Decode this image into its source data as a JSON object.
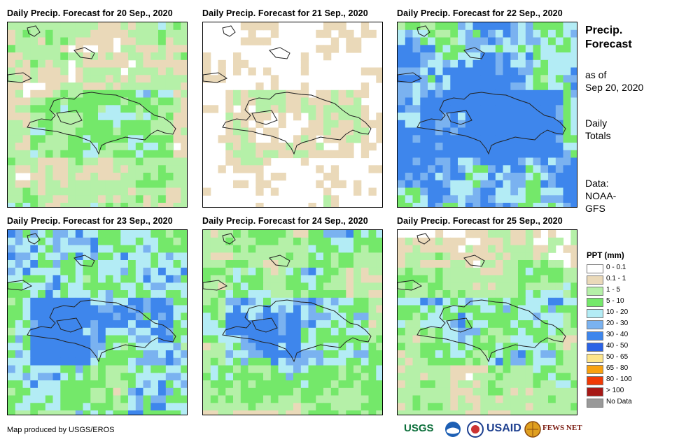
{
  "panels": [
    {
      "title": "Daily Precip. Forecast for 20 Sep., 2020",
      "seed": 11,
      "bias": 0.0
    },
    {
      "title": "Daily Precip. Forecast for 21 Sep., 2020",
      "seed": 23,
      "bias": -0.15
    },
    {
      "title": "Daily Precip. Forecast for 22 Sep., 2020",
      "seed": 37,
      "bias": 0.25
    },
    {
      "title": "Daily Precip. Forecast for 23 Sep., 2020",
      "seed": 41,
      "bias": 0.2
    },
    {
      "title": "Daily Precip. Forecast for 24 Sep., 2020",
      "seed": 53,
      "bias": 0.1
    },
    {
      "title": "Daily Precip. Forecast for 25 Sep., 2020",
      "seed": 67,
      "bias": 0.05
    }
  ],
  "side": {
    "title_line1": "Precip.",
    "title_line2": "Forecast",
    "asof_line1": "as of",
    "asof_line2": "Sep 20, 2020",
    "totals_line1": "Daily",
    "totals_line2": "Totals",
    "data_line1": "Data:",
    "data_line2": "NOAA-",
    "data_line3": "GFS"
  },
  "legend": {
    "title": "PPT (mm)",
    "items": [
      {
        "label": "0 - 0.1",
        "color": "#ffffff"
      },
      {
        "label": "0.1 - 1",
        "color": "#ead9b9"
      },
      {
        "label": "1 - 5",
        "color": "#b5f0a8"
      },
      {
        "label": "5 - 10",
        "color": "#74e86a"
      },
      {
        "label": "10 - 20",
        "color": "#b3ecf5"
      },
      {
        "label": "20 - 30",
        "color": "#7ab2f0"
      },
      {
        "label": "30 - 40",
        "color": "#3e86ec"
      },
      {
        "label": "40 - 50",
        "color": "#2b63e6"
      },
      {
        "label": "50 - 65",
        "color": "#fde58a"
      },
      {
        "label": "65 - 80",
        "color": "#f8a10f"
      },
      {
        "label": "80 - 100",
        "color": "#f03a05"
      },
      {
        "label": "> 100",
        "color": "#a61916"
      },
      {
        "label": "No Data",
        "color": "#999999"
      }
    ]
  },
  "credit": "Map produced by USGS/EROS",
  "logos": {
    "usgs": "USGS",
    "usaid": "USAID",
    "fewsnet": "FEWS NET"
  }
}
